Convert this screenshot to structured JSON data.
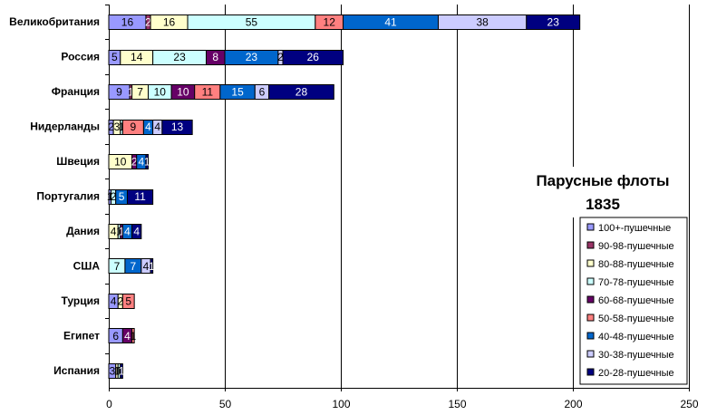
{
  "chart_data": {
    "type": "bar",
    "orientation": "horizontal",
    "stacked": true,
    "title": "Парусные флоты",
    "subtitle": "1835",
    "categories": [
      "Великобритания",
      "Россия",
      "Франция",
      "Нидерланды",
      "Швеция",
      "Португалия",
      "Дания",
      "США",
      "Турция",
      "Египет",
      "Испания"
    ],
    "xlim": [
      0,
      250
    ],
    "xticks": [
      0,
      50,
      100,
      150,
      200,
      250
    ],
    "grid": "vertical",
    "legend_position": "right",
    "series": [
      {
        "name": "100+-пушечные",
        "color": "#9999ff",
        "values": [
          16,
          5,
          9,
          2,
          0,
          1,
          0,
          0,
          4,
          6,
          3
        ]
      },
      {
        "name": "90-98-пушечные",
        "color": "#993366",
        "values": [
          2,
          0,
          1,
          0,
          0,
          0,
          0,
          0,
          0,
          0,
          0
        ]
      },
      {
        "name": "80-88-пушечные",
        "color": "#ffffcc",
        "values": [
          16,
          14,
          7,
          3,
          10,
          0,
          4,
          0,
          2,
          0,
          1
        ]
      },
      {
        "name": "70-78-пушечные",
        "color": "#ccffff",
        "values": [
          55,
          23,
          10,
          1,
          0,
          2,
          1,
          7,
          0,
          0,
          1
        ]
      },
      {
        "name": "60-68-пушечные",
        "color": "#660066",
        "values": [
          0,
          8,
          10,
          0,
          2,
          0,
          1,
          0,
          0,
          4,
          0
        ]
      },
      {
        "name": "50-58-пушечные",
        "color": "#ff8080",
        "values": [
          12,
          0,
          11,
          9,
          0,
          0,
          0,
          0,
          5,
          1,
          0
        ]
      },
      {
        "name": "40-48-пушечные",
        "color": "#0066cc",
        "values": [
          41,
          23,
          15,
          4,
          4,
          5,
          4,
          7,
          0,
          0,
          0
        ]
      },
      {
        "name": "30-38-пушечные",
        "color": "#ccccff",
        "values": [
          38,
          2,
          6,
          4,
          0,
          0,
          0,
          4,
          0,
          0,
          0
        ]
      },
      {
        "name": "20-28-пушечные",
        "color": "#000080",
        "values": [
          23,
          26,
          28,
          13,
          1,
          11,
          4,
          1,
          0,
          0,
          1
        ]
      }
    ]
  }
}
